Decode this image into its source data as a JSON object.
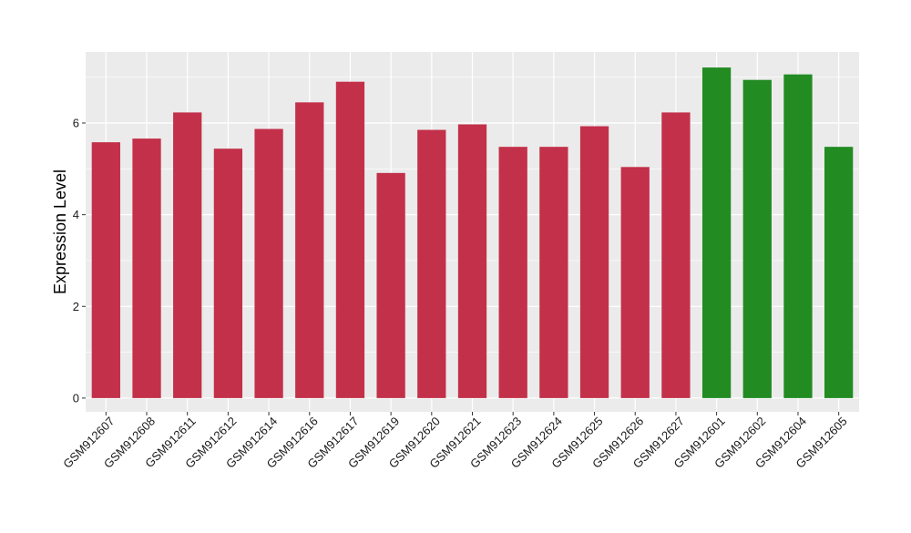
{
  "chart_data": {
    "type": "bar",
    "title": "",
    "xlabel": "",
    "ylabel": "Expression Level",
    "ylim": [
      -0.3,
      7.55
    ],
    "yticks": [
      0,
      2,
      4,
      6
    ],
    "grid": true,
    "background_color": "#ebebeb",
    "grid_color": "#ffffff",
    "categories": [
      "GSM912607",
      "GSM912608",
      "GSM912611",
      "GSM912612",
      "GSM912614",
      "GSM912616",
      "GSM912617",
      "GSM912619",
      "GSM912620",
      "GSM912621",
      "GSM912623",
      "GSM912624",
      "GSM912625",
      "GSM912626",
      "GSM912627",
      "GSM912601",
      "GSM912602",
      "GSM912604",
      "GSM912605"
    ],
    "values": [
      5.58,
      5.66,
      6.23,
      5.44,
      5.87,
      6.45,
      6.9,
      4.91,
      5.85,
      5.97,
      5.48,
      5.48,
      5.93,
      5.04,
      6.23,
      7.21,
      6.94,
      7.06,
      5.48
    ],
    "groups": [
      "red",
      "red",
      "red",
      "red",
      "red",
      "red",
      "red",
      "red",
      "red",
      "red",
      "red",
      "red",
      "red",
      "red",
      "red",
      "green",
      "green",
      "green",
      "green"
    ],
    "colors": {
      "red": "#c3304a",
      "green": "#228b22"
    }
  }
}
